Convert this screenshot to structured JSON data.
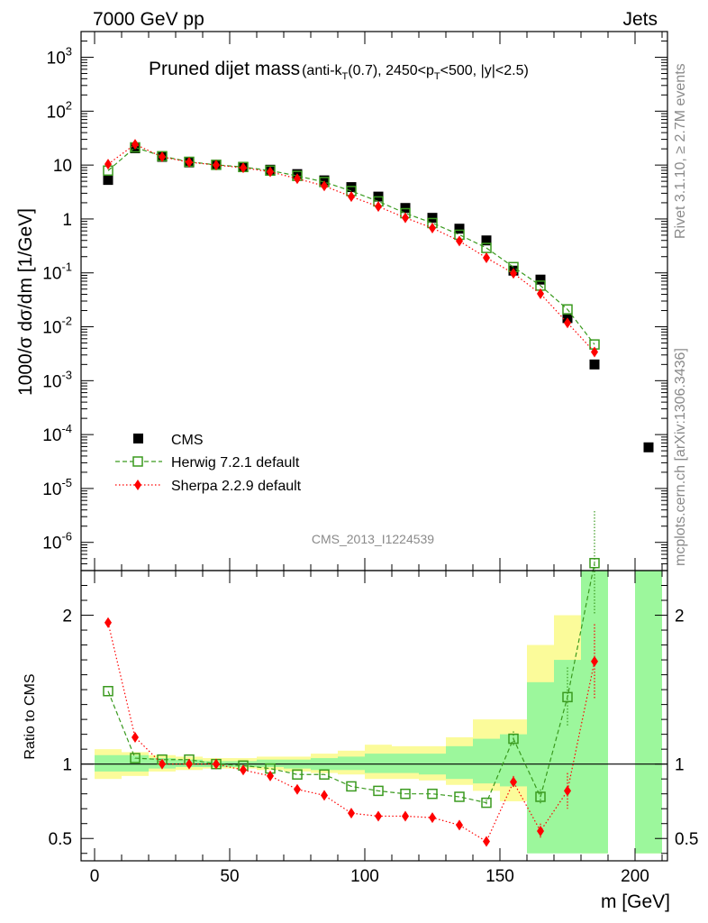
{
  "header": {
    "left": "7000 GeV pp",
    "right": "Jets"
  },
  "side_labels": {
    "rivet": "Rivet 3.1.10, ≥ 2.7M events",
    "mcplots": "mcplots.cern.ch [arXiv:1306.3436]"
  },
  "chart_data": [
    {
      "type": "scatter",
      "title": "Pruned dijet mass",
      "title_detail": "(anti-kT(0.7), 2450<pT<500, |y|<2.5)",
      "ylabel": "1000/σ dσ/dm [1/GeV]",
      "xlabel": "m [GeV]",
      "y_scale": "log",
      "ylim": [
        3e-07,
        3000
      ],
      "xlim": [
        -5,
        212
      ],
      "x_ticks": [
        "0",
        "50",
        "100",
        "150",
        "200"
      ],
      "y_ticks": [
        "10^-6",
        "10^-5",
        "10^-4",
        "10^-3",
        "10^-2",
        "10^-1",
        "1",
        "10",
        "10^2",
        "10^3"
      ],
      "watermark": "CMS_2013_I1224539",
      "legend_position": "bottom-left",
      "series": [
        {
          "name": "CMS",
          "color": "#000000",
          "marker": "filled-square",
          "x": [
            5,
            15,
            25,
            35,
            45,
            55,
            65,
            75,
            85,
            95,
            105,
            115,
            125,
            135,
            145,
            155,
            165,
            175,
            185,
            205
          ],
          "y": [
            5.3,
            20.5,
            14.2,
            11.2,
            10.1,
            9.3,
            8.2,
            6.8,
            5.2,
            3.9,
            2.6,
            1.6,
            1.05,
            0.66,
            0.4,
            0.11,
            0.075,
            0.0145,
            0.002,
            5.8e-05
          ]
        },
        {
          "name": "Herwig 7.2.1 default",
          "color": "#3a9a1f",
          "marker": "open-square",
          "line": "dashed",
          "x": [
            5,
            15,
            25,
            35,
            45,
            55,
            65,
            75,
            85,
            95,
            105,
            115,
            125,
            135,
            145,
            155,
            165,
            175,
            185
          ],
          "y": [
            7.9,
            21.3,
            14.6,
            11.5,
            10.1,
            9.2,
            7.9,
            6.3,
            4.85,
            3.3,
            2.12,
            1.28,
            0.84,
            0.51,
            0.29,
            0.128,
            0.058,
            0.021,
            0.0047
          ]
        },
        {
          "name": "Sherpa 2.2.9 default",
          "color": "#ff0000",
          "marker": "filled-diamond",
          "line": "dotted",
          "x": [
            5,
            15,
            25,
            35,
            45,
            55,
            65,
            75,
            85,
            95,
            105,
            115,
            125,
            135,
            145,
            155,
            165,
            175,
            185
          ],
          "y": [
            10.4,
            24.3,
            14.2,
            11.3,
            10.0,
            8.9,
            7.5,
            5.6,
            4.1,
            2.6,
            1.7,
            1.05,
            0.68,
            0.39,
            0.19,
            0.098,
            0.041,
            0.0118,
            0.0034
          ]
        }
      ]
    },
    {
      "type": "scatter",
      "ylabel": "Ratio to CMS",
      "xlabel": "m [GeV]",
      "ylim": [
        0.35,
        2.3
      ],
      "xlim": [
        -5,
        212
      ],
      "y_ticks": [
        "0.5",
        "1",
        "2"
      ],
      "x_ticks": [
        "0",
        "50",
        "100",
        "150",
        "200"
      ],
      "reference_line": 1,
      "bands": {
        "bin_edges": [
          0,
          10,
          20,
          30,
          40,
          50,
          60,
          70,
          80,
          90,
          100,
          110,
          120,
          130,
          140,
          150,
          160,
          170,
          180,
          190,
          200,
          210
        ],
        "green_lo": [
          0.95,
          0.95,
          0.97,
          0.98,
          0.98,
          0.98,
          0.98,
          0.97,
          0.96,
          0.96,
          0.94,
          0.94,
          0.93,
          0.9,
          0.87,
          0.85,
          0.4,
          0.4,
          0.4,
          null,
          0.4
        ],
        "green_hi": [
          1.06,
          1.06,
          1.04,
          1.03,
          1.02,
          1.02,
          1.03,
          1.03,
          1.04,
          1.05,
          1.07,
          1.07,
          1.07,
          1.12,
          1.17,
          1.2,
          1.55,
          1.7,
          2.6,
          null,
          2.6
        ],
        "yellow_lo": [
          0.9,
          0.92,
          0.95,
          0.96,
          0.97,
          0.97,
          0.96,
          0.95,
          0.94,
          0.93,
          0.9,
          0.9,
          0.89,
          0.86,
          0.82,
          0.75,
          0.6,
          0.42,
          0.4,
          null,
          0.4
        ],
        "yellow_hi": [
          1.1,
          1.08,
          1.06,
          1.05,
          1.04,
          1.04,
          1.05,
          1.05,
          1.07,
          1.09,
          1.13,
          1.12,
          1.12,
          1.18,
          1.3,
          1.3,
          1.8,
          2.0,
          2.6,
          null,
          2.6
        ],
        "green_color": "#9cf79c",
        "yellow_color": "#fbfb9a"
      },
      "series": [
        {
          "name": "Herwig 7.2.1 default",
          "color": "#3a9a1f",
          "marker": "open-square",
          "line": "dashed",
          "x": [
            5,
            15,
            25,
            35,
            45,
            55,
            65,
            75,
            85,
            95,
            105,
            115,
            125,
            135,
            145,
            155,
            165,
            175,
            185
          ],
          "y": [
            1.49,
            1.04,
            1.03,
            1.03,
            1.0,
            0.99,
            0.97,
            0.93,
            0.93,
            0.85,
            0.82,
            0.8,
            0.8,
            0.78,
            0.74,
            1.17,
            0.78,
            1.45,
            2.35
          ],
          "err": [
            0,
            0,
            0,
            0,
            0,
            0,
            0,
            0,
            0,
            0,
            0,
            0,
            0,
            0,
            0.02,
            0.05,
            0.05,
            0.2,
            0.35
          ]
        },
        {
          "name": "Sherpa 2.2.9 default",
          "color": "#ff0000",
          "marker": "filled-diamond",
          "line": "dotted",
          "x": [
            5,
            15,
            25,
            35,
            45,
            55,
            65,
            75,
            85,
            95,
            105,
            115,
            125,
            135,
            145,
            155,
            165,
            175,
            185
          ],
          "y": [
            1.95,
            1.18,
            1.0,
            1.0,
            1.0,
            0.96,
            0.92,
            0.83,
            0.79,
            0.67,
            0.65,
            0.65,
            0.64,
            0.59,
            0.48,
            0.88,
            0.55,
            0.82,
            1.69
          ],
          "err": [
            0,
            0,
            0,
            0,
            0,
            0,
            0,
            0,
            0,
            0,
            0,
            0,
            0,
            0,
            0.02,
            0.04,
            0.05,
            0.12,
            0.25
          ]
        }
      ]
    }
  ]
}
